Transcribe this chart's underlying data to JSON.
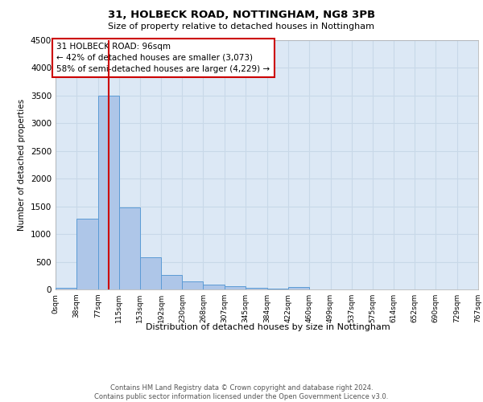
{
  "title1": "31, HOLBECK ROAD, NOTTINGHAM, NG8 3PB",
  "title2": "Size of property relative to detached houses in Nottingham",
  "xlabel": "Distribution of detached houses by size in Nottingham",
  "ylabel": "Number of detached properties",
  "footnote1": "Contains HM Land Registry data © Crown copyright and database right 2024.",
  "footnote2": "Contains public sector information licensed under the Open Government Licence v3.0.",
  "property_size": 96,
  "annotation_title": "31 HOLBECK ROAD: 96sqm",
  "annotation_line1": "← 42% of detached houses are smaller (3,073)",
  "annotation_line2": "58% of semi-detached houses are larger (4,229) →",
  "bin_labels": [
    "0sqm",
    "38sqm",
    "77sqm",
    "115sqm",
    "153sqm",
    "192sqm",
    "230sqm",
    "268sqm",
    "307sqm",
    "345sqm",
    "384sqm",
    "422sqm",
    "460sqm",
    "499sqm",
    "537sqm",
    "575sqm",
    "614sqm",
    "652sqm",
    "690sqm",
    "729sqm",
    "767sqm"
  ],
  "bin_edges": [
    0,
    38,
    77,
    115,
    153,
    192,
    230,
    268,
    307,
    345,
    384,
    422,
    460,
    499,
    537,
    575,
    614,
    652,
    690,
    729,
    767
  ],
  "bar_heights": [
    30,
    1280,
    3500,
    1480,
    580,
    260,
    150,
    90,
    60,
    30,
    10,
    50,
    5,
    0,
    0,
    0,
    0,
    0,
    0,
    0
  ],
  "bar_color": "#aec6e8",
  "bar_edge_color": "#5b9bd5",
  "grid_color": "#c8d8e8",
  "bg_color": "#dce8f5",
  "red_line_color": "#cc0000",
  "ylim": [
    0,
    4500
  ],
  "yticks": [
    0,
    500,
    1000,
    1500,
    2000,
    2500,
    3000,
    3500,
    4000,
    4500
  ]
}
